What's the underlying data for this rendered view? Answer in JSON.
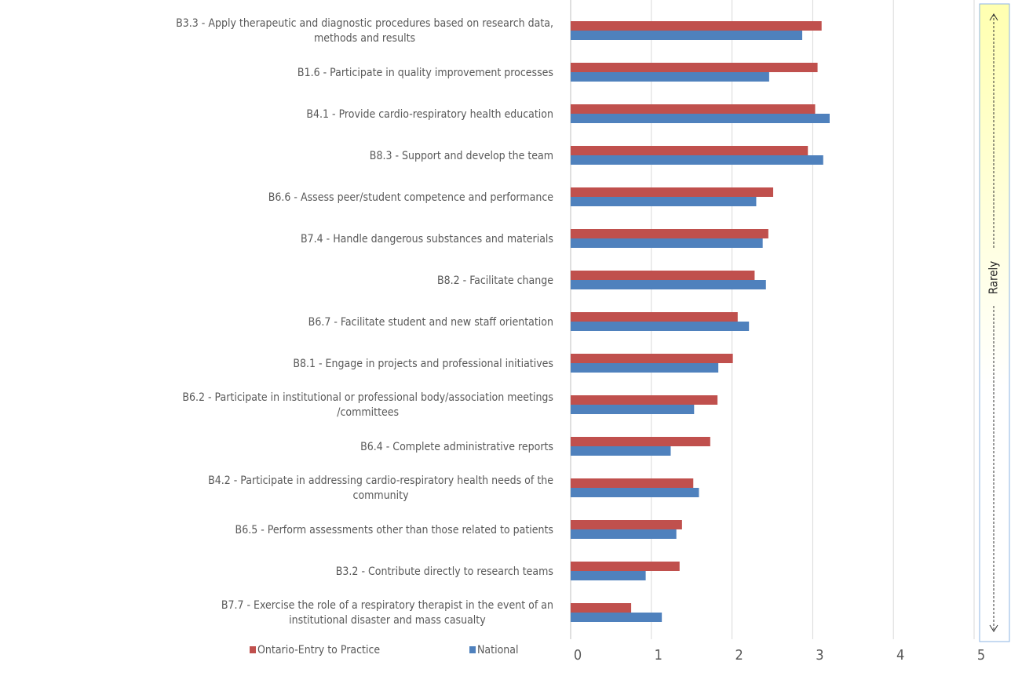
{
  "chart_data": {
    "type": "barh",
    "categories": [
      "B3.3  - Apply therapeutic and diagnostic procedures based on research data,\nmethods and results",
      "B1.6 - Participate in quality improvement processes",
      "B4.1 - Provide cardio-respiratory health education",
      "B8.3 - Support and develop the team",
      "B6.6 - Assess peer/student competence and performance",
      "B7.4 - Handle dangerous substances and materials",
      "B8.2 - Facilitate change",
      "B6.7 - Facilitate student and new staff orientation",
      "B8.1 - Engage in projects and professional initiatives",
      "B6.2 - Participate in institutional or professional body/association meetings\n/committees",
      "B6.4 - Complete administrative reports",
      "B4.2 - Participate in addressing cardio-respiratory health needs of the\ncommunity",
      "B6.5 - Perform assessments other than those related to patients",
      "B3.2  - Contribute directly to research teams",
      "B7.7 - Exercise the role of a respiratory therapist in the event of an\ninstitutional disaster and mass casualty"
    ],
    "series": [
      {
        "name": "Ontario-Entry to Practice",
        "color": "#c0504d",
        "values": [
          3.11,
          3.06,
          3.03,
          2.94,
          2.51,
          2.45,
          2.28,
          2.07,
          2.01,
          1.82,
          1.73,
          1.52,
          1.38,
          1.35,
          0.75
        ]
      },
      {
        "name": "National",
        "color": "#4f81bd",
        "values": [
          2.87,
          2.46,
          3.21,
          3.13,
          2.3,
          2.38,
          2.42,
          2.21,
          1.83,
          1.53,
          1.24,
          1.59,
          1.31,
          0.93,
          1.13
        ]
      }
    ],
    "xlim": [
      0,
      5
    ],
    "xticks": [
      0,
      1,
      2,
      3,
      4,
      5
    ],
    "grid": true,
    "annotation": "Rarely"
  }
}
